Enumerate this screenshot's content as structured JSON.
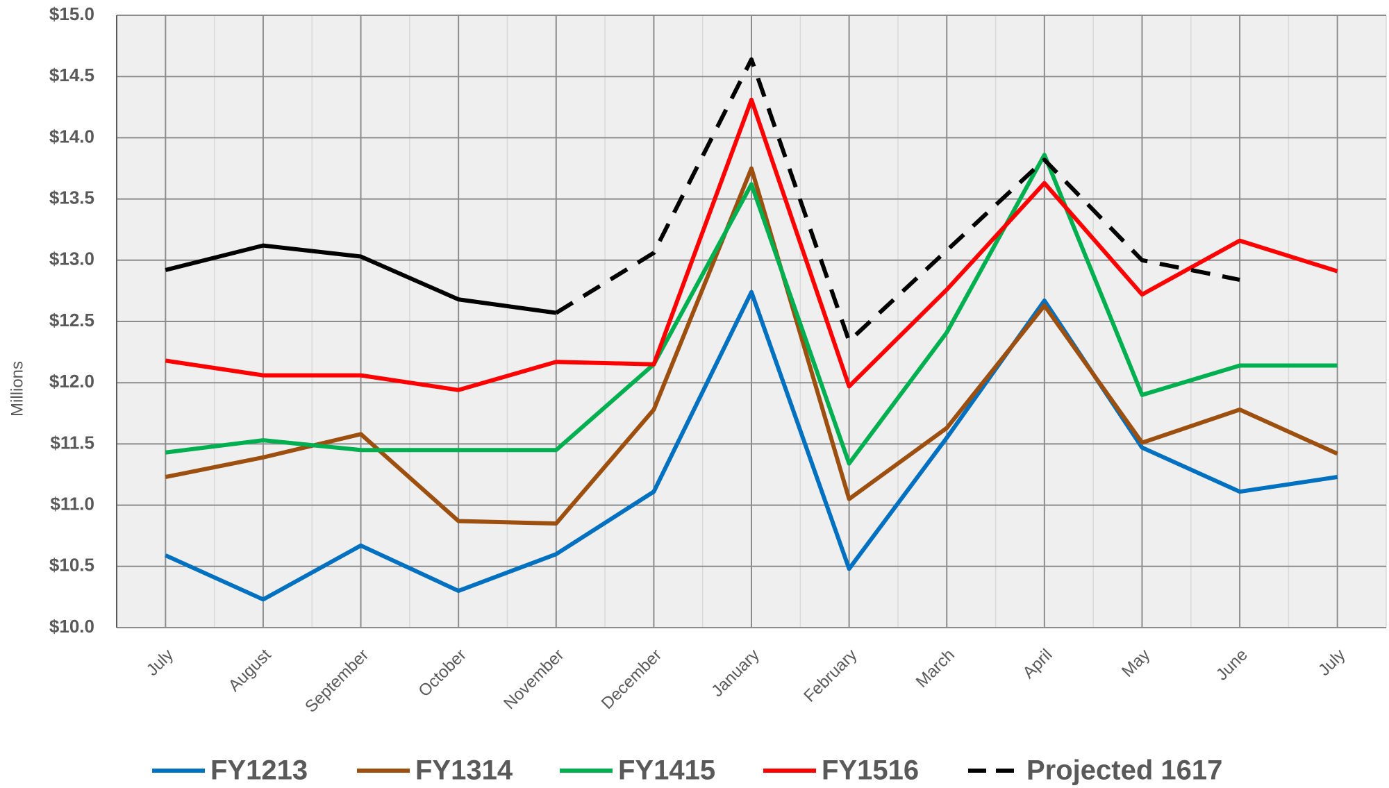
{
  "chart_data": {
    "type": "line",
    "y_label": "Millions",
    "categories": [
      "July",
      "August",
      "September",
      "October",
      "November",
      "December",
      "January",
      "February",
      "March",
      "April",
      "May",
      "June",
      "July"
    ],
    "series": [
      {
        "name": "FY1213",
        "color": "#0070c0",
        "values": [
          10.59,
          10.23,
          10.67,
          10.3,
          10.6,
          11.11,
          12.74,
          10.48,
          11.55,
          12.67,
          11.47,
          11.11,
          11.23
        ]
      },
      {
        "name": "FY1314",
        "color": "#9c4f0f",
        "values": [
          11.23,
          11.39,
          11.58,
          10.87,
          10.85,
          11.78,
          13.75,
          11.05,
          11.63,
          12.63,
          11.51,
          11.78,
          11.42
        ]
      },
      {
        "name": "FY1415",
        "color": "#00b050",
        "values": [
          11.43,
          11.53,
          11.45,
          11.45,
          11.45,
          12.15,
          13.62,
          11.34,
          12.41,
          13.86,
          11.9,
          12.14,
          12.14
        ]
      },
      {
        "name": "FY1516",
        "color": "#ff0000",
        "values": [
          12.18,
          12.06,
          12.06,
          11.94,
          12.17,
          12.15,
          14.31,
          11.97,
          12.76,
          13.63,
          12.72,
          13.16,
          12.91
        ]
      },
      {
        "name": "Projected 1617",
        "color": "#000000",
        "dashed": true,
        "dashed_from": 4,
        "values": [
          12.92,
          13.12,
          13.03,
          12.68,
          12.57,
          13.06,
          14.64,
          12.34,
          13.08,
          13.82,
          13.0,
          12.84,
          null
        ]
      }
    ],
    "ylim": [
      10,
      15
    ],
    "yticks": [
      {
        "value": 10,
        "label": "$10.0"
      },
      {
        "value": 10.5,
        "label": "$10.5"
      },
      {
        "value": 11,
        "label": "$11.0"
      },
      {
        "value": 11.5,
        "label": "$11.5"
      },
      {
        "value": 12,
        "label": "$12.0"
      },
      {
        "value": 12.5,
        "label": "$12.5"
      },
      {
        "value": 13,
        "label": "$13.0"
      },
      {
        "value": 13.5,
        "label": "$13.5"
      },
      {
        "value": 14,
        "label": "$14.0"
      },
      {
        "value": 14.5,
        "label": "$14.5"
      },
      {
        "value": 15,
        "label": "$15.0"
      }
    ],
    "grid": true,
    "legend": "bottom"
  }
}
